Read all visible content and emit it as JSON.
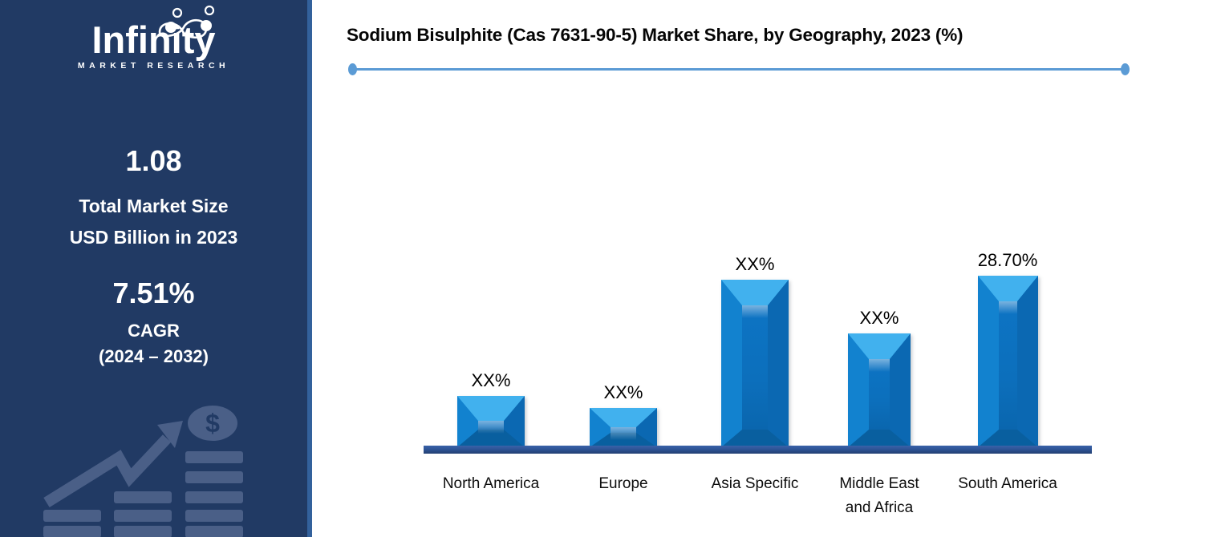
{
  "sidebar": {
    "logo": {
      "brand": "Infinity",
      "tagline": "MARKET RESEARCH"
    },
    "market_size": {
      "value": "1.08",
      "label_line1": "Total Market Size",
      "label_line2": "USD Billion in 2023"
    },
    "cagr": {
      "value": "7.51%",
      "label": "CAGR",
      "period": "(2024 – 2032)"
    }
  },
  "chart": {
    "title": "Sodium Bisulphite (Cas 7631-90-5) Market Share, by Geography, 2023 (%)"
  },
  "chart_data": {
    "type": "bar",
    "title": "Sodium Bisulphite (Cas 7631-90-5) Market Share, by Geography, 2023 (%)",
    "categories": [
      "North America",
      "Europe",
      "Asia Specific",
      "Middle East and Africa",
      "South America"
    ],
    "category_display": [
      "North America",
      "Europe",
      "Asia Specific",
      "Middle East\nand Africa",
      "South America"
    ],
    "value_labels": [
      "XX%",
      "XX%",
      "XX%",
      "XX%",
      "28.70%"
    ],
    "values_pct_estimated": [
      8.6,
      6.6,
      28.0,
      19.0,
      28.7
    ],
    "only_labeled_value": {
      "category": "South America",
      "value": 28.7
    },
    "xlabel": "",
    "ylabel": "",
    "value_axis_visible": false,
    "grid": false,
    "legend_position": "none",
    "bar_color": "#0c70bf",
    "bar_bevel_highlight": "#41b1ee",
    "axis_color": "#2e5496",
    "accent_line_color": "#5b9bd5"
  },
  "colors": {
    "sidebar_bg": "#213a64",
    "sidebar_strip": "#33619c",
    "sidebar_art": "#4a5f87",
    "text_on_dark": "#ffffff",
    "title_text": "#050505"
  }
}
